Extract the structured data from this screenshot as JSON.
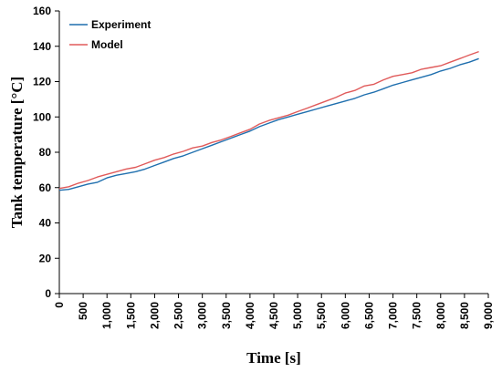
{
  "chart_data": {
    "type": "line",
    "xlabel": "Time [s]",
    "ylabel": "Tank temperature [°C]",
    "xlim": [
      0,
      9000
    ],
    "ylim": [
      0,
      160
    ],
    "x_ticks": [
      "0",
      "500",
      "1,000",
      "1,500",
      "2,000",
      "2,500",
      "3,000",
      "3,500",
      "4,000",
      "4,500",
      "5,000",
      "5,500",
      "6,000",
      "6,500",
      "7,000",
      "7,500",
      "8,000",
      "8,500",
      "9,000"
    ],
    "y_ticks": [
      "0",
      "20",
      "40",
      "60",
      "80",
      "100",
      "120",
      "140",
      "160"
    ],
    "grid": false,
    "legend_position": "top-left",
    "series": [
      {
        "name": "Experiment",
        "color": "#1f6fae",
        "x": [
          0,
          200,
          400,
          600,
          800,
          1000,
          1200,
          1400,
          1600,
          1800,
          2000,
          2200,
          2400,
          2600,
          2800,
          3000,
          3200,
          3400,
          3600,
          3800,
          4000,
          4200,
          4400,
          4600,
          4800,
          5000,
          5200,
          5400,
          5600,
          5800,
          6000,
          6200,
          6400,
          6600,
          6800,
          7000,
          7200,
          7400,
          7600,
          7800,
          8000,
          8200,
          8400,
          8600,
          8800
        ],
        "y": [
          58.5,
          59,
          60.5,
          62,
          63,
          65.5,
          67,
          68,
          69,
          70.5,
          72.5,
          74.5,
          76.5,
          78,
          80,
          82,
          84,
          86,
          88,
          90,
          92,
          94.5,
          96.5,
          98.5,
          100,
          101.5,
          103,
          104.5,
          106,
          107.5,
          109,
          110.5,
          112.5,
          114,
          116,
          118,
          119.5,
          121,
          122.5,
          124,
          126,
          127.5,
          129.5,
          131,
          133
        ]
      },
      {
        "name": "Model",
        "color": "#e05a5a",
        "x": [
          0,
          200,
          400,
          600,
          800,
          1000,
          1200,
          1400,
          1600,
          1800,
          2000,
          2200,
          2400,
          2600,
          2800,
          3000,
          3200,
          3400,
          3600,
          3800,
          4000,
          4200,
          4400,
          4600,
          4800,
          5000,
          5200,
          5400,
          5600,
          5800,
          6000,
          6200,
          6400,
          6600,
          6800,
          7000,
          7200,
          7400,
          7600,
          7800,
          8000,
          8200,
          8400,
          8600,
          8800
        ],
        "y": [
          59.5,
          60.5,
          62.5,
          64,
          66,
          67.5,
          69,
          70.5,
          71.5,
          73.5,
          75.5,
          77,
          79,
          80.5,
          82.5,
          83.5,
          85.5,
          87,
          89,
          91,
          93,
          96,
          98,
          99.5,
          101,
          103,
          105,
          107,
          109,
          111,
          113.5,
          115,
          117.5,
          118.5,
          121,
          123,
          124,
          125,
          127,
          128,
          129,
          131,
          133,
          135,
          137
        ]
      }
    ]
  }
}
